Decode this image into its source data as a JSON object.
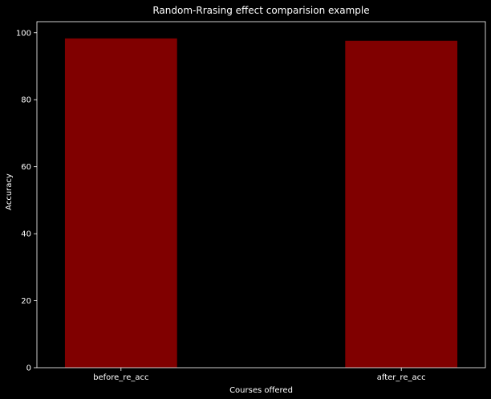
{
  "chart_data": {
    "type": "bar",
    "title": "Random-Rrasing effect comparision example",
    "xlabel": "Courses offered",
    "ylabel": "Accuracy",
    "categories": [
      "before_re_acc",
      "after_re_acc"
    ],
    "values": [
      98.3,
      97.6
    ],
    "ylim": [
      0,
      103.3
    ],
    "yticks": [
      0,
      20,
      40,
      60,
      80,
      100
    ],
    "grid": false,
    "legend": "none",
    "colors": {
      "background": "#000000",
      "bar": "#800000",
      "axes": "#ffffff",
      "text": "#ffffff"
    }
  }
}
